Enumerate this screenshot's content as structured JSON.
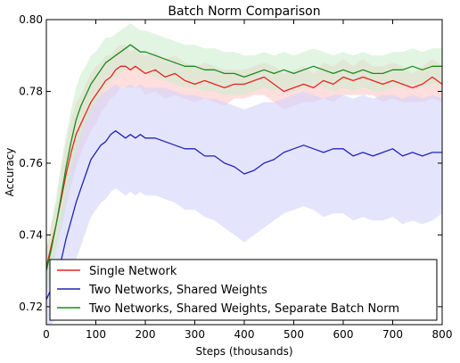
{
  "chart_data": {
    "type": "line",
    "title": "Batch Norm Comparison",
    "xlabel": "Steps (thousands)",
    "ylabel": "Accuracy",
    "xlim": [
      0,
      800
    ],
    "ylim": [
      0.715,
      0.8
    ],
    "xticks": [
      0,
      100,
      200,
      300,
      400,
      500,
      600,
      700,
      800
    ],
    "yticks": [
      0.72,
      0.74,
      0.76,
      0.78,
      0.8
    ],
    "ytick_labels": [
      "0.72",
      "0.74",
      "0.76",
      "0.78",
      "0.80"
    ],
    "grid": false,
    "legend": "lower-right",
    "series": [
      {
        "name": "Single Network",
        "color": "#e8231f",
        "band_color": "#ffc8c8",
        "x": [
          0,
          10,
          20,
          30,
          40,
          50,
          60,
          70,
          80,
          90,
          100,
          110,
          120,
          130,
          140,
          150,
          160,
          170,
          180,
          190,
          200,
          220,
          240,
          260,
          280,
          300,
          320,
          340,
          360,
          380,
          400,
          420,
          440,
          460,
          480,
          500,
          520,
          540,
          560,
          580,
          600,
          620,
          640,
          660,
          680,
          700,
          720,
          740,
          760,
          780,
          800
        ],
        "y": [
          0.731,
          0.737,
          0.743,
          0.75,
          0.757,
          0.763,
          0.768,
          0.771,
          0.774,
          0.777,
          0.779,
          0.781,
          0.783,
          0.784,
          0.786,
          0.787,
          0.787,
          0.786,
          0.787,
          0.786,
          0.785,
          0.786,
          0.784,
          0.785,
          0.783,
          0.782,
          0.783,
          0.782,
          0.781,
          0.782,
          0.782,
          0.783,
          0.784,
          0.782,
          0.78,
          0.781,
          0.782,
          0.781,
          0.783,
          0.782,
          0.784,
          0.783,
          0.784,
          0.783,
          0.782,
          0.783,
          0.782,
          0.781,
          0.782,
          0.784,
          0.782
        ],
        "lower": [
          0.726,
          0.731,
          0.737,
          0.742,
          0.748,
          0.754,
          0.759,
          0.763,
          0.766,
          0.769,
          0.771,
          0.774,
          0.776,
          0.778,
          0.779,
          0.781,
          0.781,
          0.781,
          0.781,
          0.781,
          0.779,
          0.78,
          0.778,
          0.779,
          0.778,
          0.777,
          0.778,
          0.777,
          0.776,
          0.778,
          0.778,
          0.779,
          0.779,
          0.777,
          0.775,
          0.776,
          0.777,
          0.777,
          0.778,
          0.777,
          0.779,
          0.779,
          0.779,
          0.779,
          0.777,
          0.778,
          0.777,
          0.777,
          0.777,
          0.778,
          0.777
        ],
        "upper": [
          0.736,
          0.743,
          0.749,
          0.758,
          0.766,
          0.772,
          0.777,
          0.779,
          0.782,
          0.785,
          0.787,
          0.788,
          0.79,
          0.79,
          0.792,
          0.793,
          0.793,
          0.791,
          0.792,
          0.791,
          0.79,
          0.791,
          0.789,
          0.79,
          0.788,
          0.787,
          0.788,
          0.787,
          0.786,
          0.786,
          0.786,
          0.787,
          0.788,
          0.787,
          0.785,
          0.786,
          0.787,
          0.785,
          0.788,
          0.787,
          0.789,
          0.787,
          0.789,
          0.787,
          0.787,
          0.788,
          0.787,
          0.785,
          0.787,
          0.789,
          0.787
        ]
      },
      {
        "name": "Two Networks, Shared Weights",
        "color": "#2222bb",
        "band_color": "#d2d2fb",
        "x": [
          0,
          10,
          20,
          30,
          40,
          50,
          60,
          70,
          80,
          90,
          100,
          110,
          120,
          130,
          140,
          150,
          160,
          170,
          180,
          190,
          200,
          220,
          240,
          260,
          280,
          300,
          320,
          340,
          360,
          380,
          400,
          420,
          440,
          460,
          480,
          500,
          520,
          540,
          560,
          580,
          600,
          620,
          640,
          660,
          680,
          700,
          720,
          740,
          760,
          780,
          800
        ],
        "y": [
          0.722,
          0.725,
          0.728,
          0.733,
          0.739,
          0.744,
          0.749,
          0.753,
          0.757,
          0.761,
          0.763,
          0.765,
          0.766,
          0.768,
          0.769,
          0.768,
          0.767,
          0.768,
          0.767,
          0.768,
          0.767,
          0.767,
          0.766,
          0.765,
          0.764,
          0.764,
          0.762,
          0.762,
          0.76,
          0.759,
          0.757,
          0.758,
          0.76,
          0.761,
          0.763,
          0.764,
          0.765,
          0.764,
          0.763,
          0.764,
          0.764,
          0.762,
          0.763,
          0.762,
          0.763,
          0.764,
          0.762,
          0.763,
          0.762,
          0.763,
          0.763
        ],
        "lower": [
          0.714,
          0.715,
          0.717,
          0.72,
          0.724,
          0.728,
          0.733,
          0.737,
          0.741,
          0.745,
          0.747,
          0.749,
          0.75,
          0.752,
          0.753,
          0.752,
          0.751,
          0.752,
          0.751,
          0.752,
          0.751,
          0.751,
          0.75,
          0.749,
          0.747,
          0.747,
          0.745,
          0.744,
          0.742,
          0.74,
          0.738,
          0.74,
          0.742,
          0.744,
          0.746,
          0.747,
          0.748,
          0.747,
          0.745,
          0.746,
          0.746,
          0.744,
          0.745,
          0.744,
          0.744,
          0.745,
          0.743,
          0.744,
          0.743,
          0.744,
          0.746
        ],
        "upper": [
          0.73,
          0.735,
          0.739,
          0.746,
          0.754,
          0.76,
          0.765,
          0.769,
          0.773,
          0.776,
          0.778,
          0.779,
          0.78,
          0.781,
          0.782,
          0.781,
          0.781,
          0.782,
          0.781,
          0.782,
          0.781,
          0.781,
          0.781,
          0.78,
          0.779,
          0.779,
          0.778,
          0.778,
          0.777,
          0.776,
          0.775,
          0.776,
          0.777,
          0.777,
          0.778,
          0.779,
          0.78,
          0.779,
          0.778,
          0.779,
          0.779,
          0.778,
          0.779,
          0.778,
          0.779,
          0.779,
          0.778,
          0.779,
          0.778,
          0.779,
          0.778
        ]
      },
      {
        "name": "Two Networks, Shared Weights, Separate Batch Norm",
        "color": "#1a8a1a",
        "band_color": "#cfeccf",
        "x": [
          0,
          10,
          20,
          30,
          40,
          50,
          60,
          70,
          80,
          90,
          100,
          110,
          120,
          130,
          140,
          150,
          160,
          170,
          180,
          190,
          200,
          220,
          240,
          260,
          280,
          300,
          320,
          340,
          360,
          380,
          400,
          420,
          440,
          460,
          480,
          500,
          520,
          540,
          560,
          580,
          600,
          620,
          640,
          660,
          680,
          700,
          720,
          740,
          760,
          780,
          800
        ],
        "y": [
          0.73,
          0.736,
          0.743,
          0.751,
          0.759,
          0.766,
          0.772,
          0.776,
          0.779,
          0.782,
          0.784,
          0.786,
          0.788,
          0.789,
          0.79,
          0.791,
          0.792,
          0.793,
          0.792,
          0.791,
          0.791,
          0.79,
          0.789,
          0.788,
          0.787,
          0.787,
          0.786,
          0.786,
          0.785,
          0.785,
          0.784,
          0.785,
          0.786,
          0.785,
          0.786,
          0.785,
          0.786,
          0.787,
          0.786,
          0.785,
          0.786,
          0.785,
          0.786,
          0.785,
          0.785,
          0.786,
          0.786,
          0.787,
          0.786,
          0.787,
          0.787
        ],
        "lower": [
          0.724,
          0.729,
          0.735,
          0.742,
          0.75,
          0.757,
          0.763,
          0.767,
          0.771,
          0.774,
          0.777,
          0.779,
          0.781,
          0.783,
          0.784,
          0.785,
          0.786,
          0.786,
          0.786,
          0.785,
          0.785,
          0.784,
          0.783,
          0.782,
          0.781,
          0.781,
          0.78,
          0.78,
          0.779,
          0.779,
          0.779,
          0.78,
          0.781,
          0.78,
          0.781,
          0.78,
          0.781,
          0.782,
          0.781,
          0.78,
          0.781,
          0.78,
          0.781,
          0.78,
          0.78,
          0.781,
          0.781,
          0.782,
          0.781,
          0.782,
          0.782
        ],
        "upper": [
          0.736,
          0.743,
          0.751,
          0.76,
          0.768,
          0.775,
          0.781,
          0.785,
          0.787,
          0.79,
          0.791,
          0.793,
          0.795,
          0.795,
          0.796,
          0.797,
          0.798,
          0.799,
          0.798,
          0.797,
          0.797,
          0.796,
          0.795,
          0.794,
          0.793,
          0.793,
          0.792,
          0.792,
          0.791,
          0.791,
          0.79,
          0.79,
          0.791,
          0.79,
          0.791,
          0.79,
          0.791,
          0.792,
          0.791,
          0.79,
          0.791,
          0.79,
          0.791,
          0.79,
          0.79,
          0.791,
          0.791,
          0.792,
          0.791,
          0.792,
          0.792
        ]
      }
    ]
  }
}
